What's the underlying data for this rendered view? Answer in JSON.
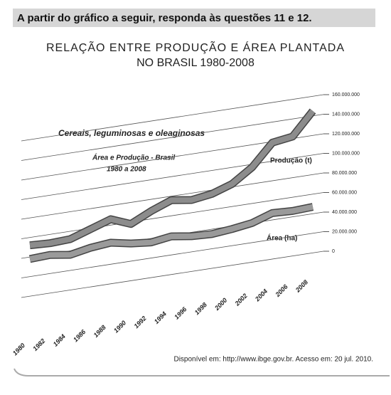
{
  "header": "A partir do gráfico a seguir, responda às questões 11 e 12.",
  "chart_data": {
    "type": "line",
    "title": [
      "RELAÇÃO ENTRE PRODUÇÃO E ÁREA PLANTADA",
      "NO BRASIL 1980-2008"
    ],
    "annotations": [
      "Cereais, leguminosas e oleaginosas",
      "Área e Produção - Brasil",
      "1980 a 2008"
    ],
    "categories": [
      "1980",
      "1982",
      "1984",
      "1986",
      "1988",
      "1990",
      "1992",
      "1994",
      "1996",
      "1998",
      "2000",
      "2002",
      "2004",
      "2006",
      "2008"
    ],
    "series": [
      {
        "name": "Produção (t)",
        "color": "#8c8c8c",
        "values": [
          52000000,
          51000000,
          52000000,
          59000000,
          66000000,
          58000000,
          68000000,
          76000000,
          73000000,
          76000000,
          83000000,
          97000000,
          119000000,
          122000000,
          145000000
        ]
      },
      {
        "name": "Área (ha)",
        "color": "#9a9a9a",
        "values": [
          38000000,
          39000000,
          36000000,
          40000000,
          42000000,
          38000000,
          36000000,
          39000000,
          36000000,
          35000000,
          37000000,
          40000000,
          47000000,
          46000000,
          47000000
        ]
      }
    ],
    "ylim": [
      0,
      160000000
    ],
    "yticks": [
      0,
      {
        "value": 20000000,
        "label": "20.000.000"
      },
      {
        "value": 40000000,
        "label": "40.000.000"
      },
      {
        "value": 60000000,
        "label": "60.000.000"
      },
      {
        "value": 80000000,
        "label": "80.000.000"
      },
      {
        "value": 100000000,
        "label": "100.000.000"
      },
      {
        "value": 120000000,
        "label": "120.000.000"
      },
      {
        "value": 140000000,
        "label": "140.000.000"
      },
      {
        "value": 160000000,
        "label": "160.000.000"
      }
    ],
    "grid": true,
    "source": "Disponível em: http://www.ibge.gov.br. Acesso em: 20 jul. 2010."
  }
}
